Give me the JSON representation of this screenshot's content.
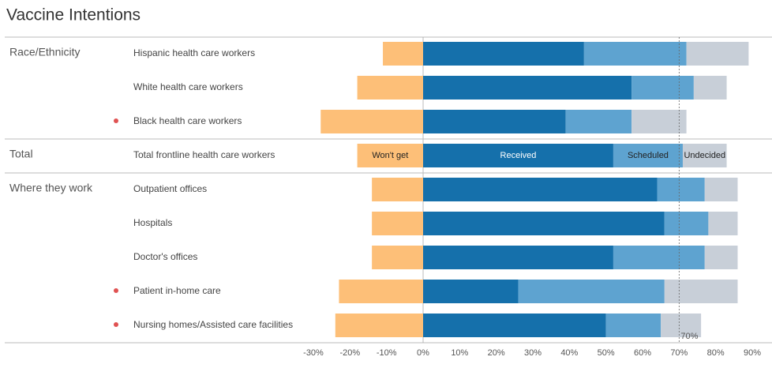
{
  "chart_data": {
    "type": "diverging-bar",
    "title": "Vaccine Intentions",
    "groups": [
      {
        "name": "Race/Ethnicity",
        "categories": [
          "Hispanic health care workers",
          "White health care workers",
          "Black health care workers"
        ],
        "highlight": [
          false,
          false,
          true
        ]
      },
      {
        "name": "Total",
        "categories": [
          "Total frontline health care workers"
        ],
        "highlight": [
          false
        ]
      },
      {
        "name": "Where they work",
        "categories": [
          "Outpatient offices",
          "Hospitals",
          "Doctor's offices",
          "Patient in-home care",
          "Nursing homes/Assisted care facilities"
        ],
        "highlight": [
          false,
          false,
          false,
          true,
          true
        ]
      }
    ],
    "series": [
      {
        "name": "Won't get",
        "color": "#fdbf78",
        "values": [
          -11,
          -18,
          -28,
          -18,
          -14,
          -14,
          -14,
          -23,
          -24
        ]
      },
      {
        "name": "Received",
        "color": "#1570ab",
        "values": [
          44,
          57,
          39,
          52,
          64,
          66,
          52,
          26,
          50
        ]
      },
      {
        "name": "Scheduled",
        "color": "#5ea3d0",
        "values": [
          28,
          17,
          18,
          19,
          13,
          12,
          25,
          40,
          15
        ]
      },
      {
        "name": "Undecided",
        "color": "#c8cfd8",
        "values": [
          17,
          9,
          15,
          12,
          9,
          8,
          9,
          20,
          11
        ]
      }
    ],
    "xlim": [
      -30,
      90
    ],
    "xticks": [
      {
        "value": -30,
        "label": "-30%"
      },
      {
        "value": -20,
        "label": "-20%"
      },
      {
        "value": -10,
        "label": "-10%"
      },
      {
        "value": 0,
        "label": "0%"
      },
      {
        "value": 10,
        "label": "10%"
      },
      {
        "value": 20,
        "label": "20%"
      },
      {
        "value": 30,
        "label": "30%"
      },
      {
        "value": 40,
        "label": "40%"
      },
      {
        "value": 50,
        "label": "50%"
      },
      {
        "value": 60,
        "label": "60%"
      },
      {
        "value": 70,
        "label": "70%"
      },
      {
        "value": 80,
        "label": "80%"
      },
      {
        "value": 90,
        "label": "90%"
      }
    ],
    "reference_line": {
      "value": 70,
      "label": "70%"
    },
    "highlight_color": "#e05252"
  }
}
